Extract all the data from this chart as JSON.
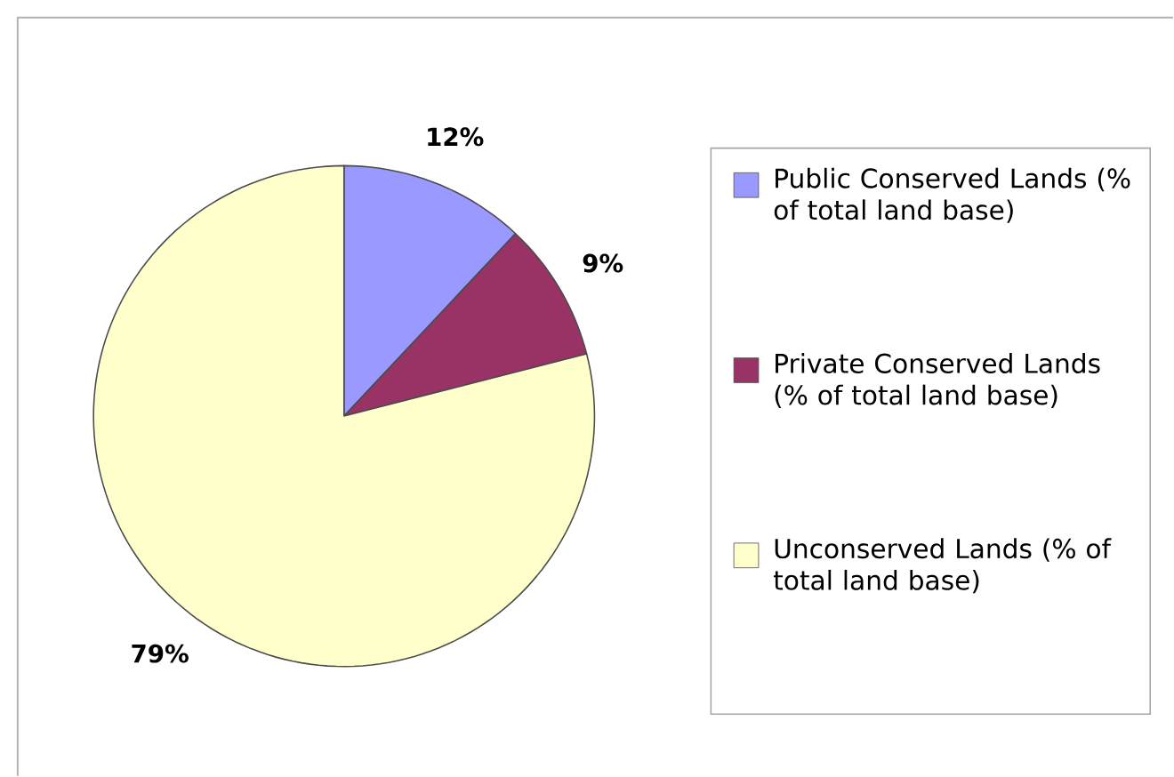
{
  "chart_data": {
    "type": "pie",
    "categories": [
      "Public Conserved Lands (% of total land base)",
      "Private Conserved Lands (% of total land base)",
      "Unconserved Lands (% of total land base)"
    ],
    "values": [
      12,
      9,
      79
    ],
    "colors": [
      "#9999ff",
      "#993366",
      "#ffffcc"
    ],
    "value_labels": [
      "12%",
      "9%",
      "79%"
    ],
    "legend": "right"
  }
}
